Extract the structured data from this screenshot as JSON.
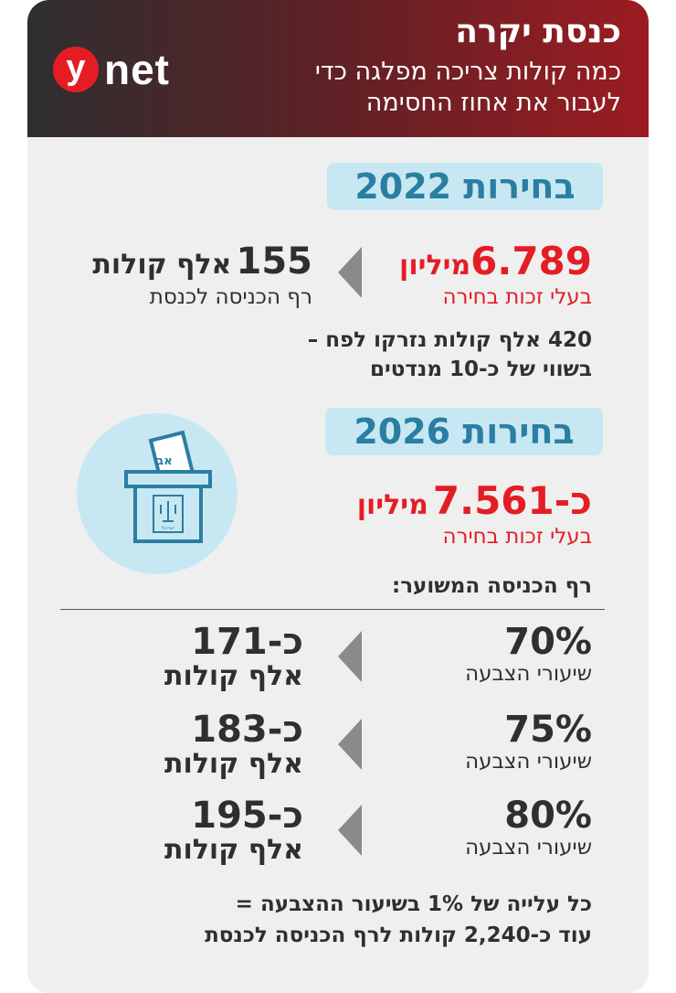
{
  "header": {
    "logo_letter": "y",
    "logo_text": "net",
    "title": "כנסת יקרה",
    "subtitle_line1": "כמה קולות צריכה מפלגה כדי",
    "subtitle_line2": "לעבור את אחוז החסימה"
  },
  "section2022": {
    "label": "בחירות 2022",
    "eligible_value": "6.789",
    "eligible_unit": "מיליון",
    "eligible_caption": "בעלי זכות בחירה",
    "threshold_value": "155",
    "threshold_unit": "אלף קולות",
    "threshold_caption": "רף הכניסה לכנסת",
    "note_line1": "420 אלף קולות נזרקו לפח –",
    "note_line2": "בשווי של כ-10 מנדטים"
  },
  "section2026": {
    "label": "בחירות 2026",
    "eligible_prefix": "כ-",
    "eligible_value": "7.561",
    "eligible_unit": "מיליון",
    "eligible_caption": "בעלי זכות בחירה",
    "ballot_note": "אב",
    "box_label": "ישראל",
    "threshold_heading": "רף הכניסה המשוער:",
    "rows": [
      {
        "pct": "70%",
        "pct_caption": "שיעורי הצבעה",
        "votes": "כ-171",
        "votes_unit": "אלף קולות"
      },
      {
        "pct": "75%",
        "pct_caption": "שיעורי הצבעה",
        "votes": "כ-183",
        "votes_unit": "אלף קולות"
      },
      {
        "pct": "80%",
        "pct_caption": "שיעורי הצבעה",
        "votes": "כ-195",
        "votes_unit": "אלף קולות"
      }
    ],
    "footer_line1": "כל עלייה של 1% בשיעור ההצבעה =",
    "footer_line2": "עוד כ-2,240 קולות לרף הכניסה לכנסת"
  },
  "colors": {
    "accent_red": "#e41d25",
    "accent_blue": "#2a7ea2",
    "pill_bg": "#c7e8f3",
    "icon_circle": "#c7e8f3"
  },
  "icons": {
    "ballot_box": "ballot-box-icon",
    "arrow": "arrow-left-icon"
  }
}
